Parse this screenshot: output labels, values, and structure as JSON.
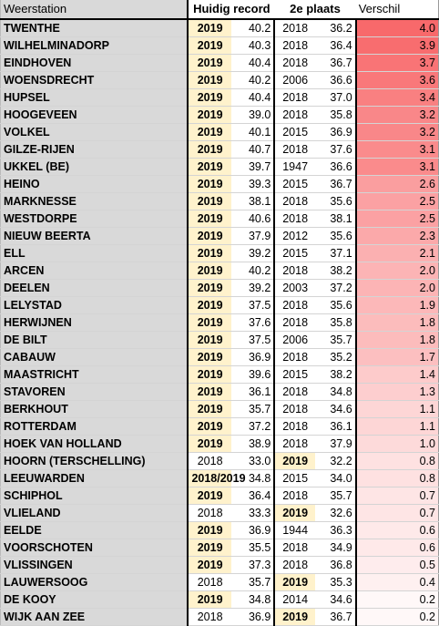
{
  "headers": {
    "station": "Weerstation",
    "current_record": "Huidig record",
    "second_place": "2e plaats",
    "difference": "Verschil"
  },
  "colors": {
    "highlight_year": "#fff2cc",
    "station_column": "#d9d9d9",
    "difference_max": "#f8696b",
    "difference_min": "#ffffff"
  },
  "rows": [
    {
      "station": "TWENTHE",
      "rec_year": "2019",
      "rec_val": "40.2",
      "sec_year": "2018",
      "sec_val": "36.2",
      "diff": "4.0",
      "rec_hl": true,
      "sec_hl": false
    },
    {
      "station": "WILHELMINADORP",
      "rec_year": "2019",
      "rec_val": "40.3",
      "sec_year": "2018",
      "sec_val": "36.4",
      "diff": "3.9",
      "rec_hl": true,
      "sec_hl": false
    },
    {
      "station": "EINDHOVEN",
      "rec_year": "2019",
      "rec_val": "40.4",
      "sec_year": "2018",
      "sec_val": "36.7",
      "diff": "3.7",
      "rec_hl": true,
      "sec_hl": false
    },
    {
      "station": "WOENSDRECHT",
      "rec_year": "2019",
      "rec_val": "40.2",
      "sec_year": "2006",
      "sec_val": "36.6",
      "diff": "3.6",
      "rec_hl": true,
      "sec_hl": false
    },
    {
      "station": "HUPSEL",
      "rec_year": "2019",
      "rec_val": "40.4",
      "sec_year": "2018",
      "sec_val": "37.0",
      "diff": "3.4",
      "rec_hl": true,
      "sec_hl": false
    },
    {
      "station": "HOOGEVEEN",
      "rec_year": "2019",
      "rec_val": "39.0",
      "sec_year": "2018",
      "sec_val": "35.8",
      "diff": "3.2",
      "rec_hl": true,
      "sec_hl": false
    },
    {
      "station": "VOLKEL",
      "rec_year": "2019",
      "rec_val": "40.1",
      "sec_year": "2015",
      "sec_val": "36.9",
      "diff": "3.2",
      "rec_hl": true,
      "sec_hl": false
    },
    {
      "station": "GILZE-RIJEN",
      "rec_year": "2019",
      "rec_val": "40.7",
      "sec_year": "2018",
      "sec_val": "37.6",
      "diff": "3.1",
      "rec_hl": true,
      "sec_hl": false
    },
    {
      "station": "UKKEL (BE)",
      "rec_year": "2019",
      "rec_val": "39.7",
      "sec_year": "1947",
      "sec_val": "36.6",
      "diff": "3.1",
      "rec_hl": true,
      "sec_hl": false
    },
    {
      "station": "HEINO",
      "rec_year": "2019",
      "rec_val": "39.3",
      "sec_year": "2015",
      "sec_val": "36.7",
      "diff": "2.6",
      "rec_hl": true,
      "sec_hl": false
    },
    {
      "station": "MARKNESSE",
      "rec_year": "2019",
      "rec_val": "38.1",
      "sec_year": "2018",
      "sec_val": "35.6",
      "diff": "2.5",
      "rec_hl": true,
      "sec_hl": false
    },
    {
      "station": "WESTDORPE",
      "rec_year": "2019",
      "rec_val": "40.6",
      "sec_year": "2018",
      "sec_val": "38.1",
      "diff": "2.5",
      "rec_hl": true,
      "sec_hl": false
    },
    {
      "station": "NIEUW BEERTA",
      "rec_year": "2019",
      "rec_val": "37.9",
      "sec_year": "2012",
      "sec_val": "35.6",
      "diff": "2.3",
      "rec_hl": true,
      "sec_hl": false
    },
    {
      "station": "ELL",
      "rec_year": "2019",
      "rec_val": "39.2",
      "sec_year": "2015",
      "sec_val": "37.1",
      "diff": "2.1",
      "rec_hl": true,
      "sec_hl": false
    },
    {
      "station": "ARCEN",
      "rec_year": "2019",
      "rec_val": "40.2",
      "sec_year": "2018",
      "sec_val": "38.2",
      "diff": "2.0",
      "rec_hl": true,
      "sec_hl": false
    },
    {
      "station": "DEELEN",
      "rec_year": "2019",
      "rec_val": "39.2",
      "sec_year": "2003",
      "sec_val": "37.2",
      "diff": "2.0",
      "rec_hl": true,
      "sec_hl": false
    },
    {
      "station": "LELYSTAD",
      "rec_year": "2019",
      "rec_val": "37.5",
      "sec_year": "2018",
      "sec_val": "35.6",
      "diff": "1.9",
      "rec_hl": true,
      "sec_hl": false
    },
    {
      "station": "HERWIJNEN",
      "rec_year": "2019",
      "rec_val": "37.6",
      "sec_year": "2018",
      "sec_val": "35.8",
      "diff": "1.8",
      "rec_hl": true,
      "sec_hl": false
    },
    {
      "station": "DE BILT",
      "rec_year": "2019",
      "rec_val": "37.5",
      "sec_year": "2006",
      "sec_val": "35.7",
      "diff": "1.8",
      "rec_hl": true,
      "sec_hl": false
    },
    {
      "station": "CABAUW",
      "rec_year": "2019",
      "rec_val": "36.9",
      "sec_year": "2018",
      "sec_val": "35.2",
      "diff": "1.7",
      "rec_hl": true,
      "sec_hl": false
    },
    {
      "station": "MAASTRICHT",
      "rec_year": "2019",
      "rec_val": "39.6",
      "sec_year": "2015",
      "sec_val": "38.2",
      "diff": "1.4",
      "rec_hl": true,
      "sec_hl": false
    },
    {
      "station": "STAVOREN",
      "rec_year": "2019",
      "rec_val": "36.1",
      "sec_year": "2018",
      "sec_val": "34.8",
      "diff": "1.3",
      "rec_hl": true,
      "sec_hl": false
    },
    {
      "station": "BERKHOUT",
      "rec_year": "2019",
      "rec_val": "35.7",
      "sec_year": "2018",
      "sec_val": "34.6",
      "diff": "1.1",
      "rec_hl": true,
      "sec_hl": false
    },
    {
      "station": "ROTTERDAM",
      "rec_year": "2019",
      "rec_val": "37.2",
      "sec_year": "2018",
      "sec_val": "36.1",
      "diff": "1.1",
      "rec_hl": true,
      "sec_hl": false
    },
    {
      "station": "HOEK VAN HOLLAND",
      "rec_year": "2019",
      "rec_val": "38.9",
      "sec_year": "2018",
      "sec_val": "37.9",
      "diff": "1.0",
      "rec_hl": true,
      "sec_hl": false
    },
    {
      "station": "HOORN (TERSCHELLING)",
      "rec_year": "2018",
      "rec_val": "33.0",
      "sec_year": "2019",
      "sec_val": "32.2",
      "diff": "0.8",
      "rec_hl": false,
      "sec_hl": true
    },
    {
      "station": "LEEUWARDEN",
      "rec_year": "2018/2019",
      "rec_val": "34.8",
      "sec_year": "2015",
      "sec_val": "34.0",
      "diff": "0.8",
      "rec_hl": true,
      "sec_hl": false
    },
    {
      "station": "SCHIPHOL",
      "rec_year": "2019",
      "rec_val": "36.4",
      "sec_year": "2018",
      "sec_val": "35.7",
      "diff": "0.7",
      "rec_hl": true,
      "sec_hl": false
    },
    {
      "station": "VLIELAND",
      "rec_year": "2018",
      "rec_val": "33.3",
      "sec_year": "2019",
      "sec_val": "32.6",
      "diff": "0.7",
      "rec_hl": false,
      "sec_hl": true
    },
    {
      "station": "EELDE",
      "rec_year": "2019",
      "rec_val": "36.9",
      "sec_year": "1944",
      "sec_val": "36.3",
      "diff": "0.6",
      "rec_hl": true,
      "sec_hl": false
    },
    {
      "station": "VOORSCHOTEN",
      "rec_year": "2019",
      "rec_val": "35.5",
      "sec_year": "2018",
      "sec_val": "34.9",
      "diff": "0.6",
      "rec_hl": true,
      "sec_hl": false
    },
    {
      "station": "VLISSINGEN",
      "rec_year": "2019",
      "rec_val": "37.3",
      "sec_year": "2018",
      "sec_val": "36.8",
      "diff": "0.5",
      "rec_hl": true,
      "sec_hl": false
    },
    {
      "station": "LAUWERSOOG",
      "rec_year": "2018",
      "rec_val": "35.7",
      "sec_year": "2019",
      "sec_val": "35.3",
      "diff": "0.4",
      "rec_hl": false,
      "sec_hl": true
    },
    {
      "station": "DE KOOY",
      "rec_year": "2019",
      "rec_val": "34.8",
      "sec_year": "2014",
      "sec_val": "34.6",
      "diff": "0.2",
      "rec_hl": true,
      "sec_hl": false
    },
    {
      "station": "WIJK AAN ZEE",
      "rec_year": "2018",
      "rec_val": "36.9",
      "sec_year": "2019",
      "sec_val": "36.7",
      "diff": "0.2",
      "rec_hl": false,
      "sec_hl": true
    }
  ]
}
